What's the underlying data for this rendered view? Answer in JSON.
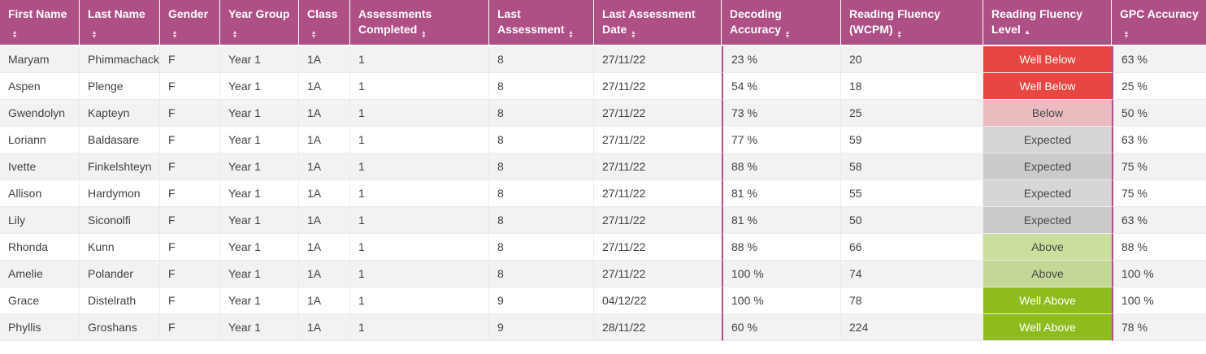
{
  "colors": {
    "header_bg": "#ae4f86",
    "accent_border": "#b04d8a",
    "row_stripe": "#f2f2f2",
    "body_text": "#414141",
    "header_text": "#ffffff"
  },
  "levels": {
    "Well Below": {
      "bg": "rgba(229,56,52,0.93)",
      "text": "#ffffff"
    },
    "Below": {
      "bg": "rgba(220,80,90,0.33)",
      "text": "#474747"
    },
    "Expected": {
      "bg": "rgba(0,0,0,0.16)",
      "text": "#474747"
    },
    "Above": {
      "bg": "rgba(139,184,35,0.45)",
      "text": "#474747"
    },
    "Well Above": {
      "bg": "rgba(142,188,31,1)",
      "text": "#ffffff"
    }
  },
  "table": {
    "columns": [
      {
        "key": "first_name",
        "label": "First Name",
        "sort": "both"
      },
      {
        "key": "last_name",
        "label": "Last Name",
        "sort": "both"
      },
      {
        "key": "gender",
        "label": "Gender",
        "sort": "both"
      },
      {
        "key": "year_group",
        "label": "Year Group",
        "sort": "both"
      },
      {
        "key": "class",
        "label": "Class",
        "sort": "both"
      },
      {
        "key": "assessments_completed",
        "label": "Assessments Completed",
        "sort": "both"
      },
      {
        "key": "last_assessment",
        "label": "Last Assessment",
        "sort": "both"
      },
      {
        "key": "last_assessment_date",
        "label": "Last Assessment Date",
        "sort": "both"
      },
      {
        "key": "decoding_accuracy",
        "label": "Decoding Accuracy",
        "sort": "both"
      },
      {
        "key": "reading_fluency_wcpm",
        "label": "Reading Fluency (WCPM)",
        "sort": "both"
      },
      {
        "key": "reading_fluency_level",
        "label": "Reading Fluency Level",
        "sort": "asc"
      },
      {
        "key": "gpc_accuracy",
        "label": "GPC Accuracy",
        "sort": "both"
      }
    ],
    "rows": [
      {
        "first_name": "Maryam",
        "last_name": "Phimmachack",
        "gender": "F",
        "year_group": "Year 1",
        "class": "1A",
        "assessments_completed": "1",
        "last_assessment": "8",
        "last_assessment_date": "27/11/22",
        "decoding_accuracy": "23 %",
        "reading_fluency_wcpm": "20",
        "reading_fluency_level": "Well Below",
        "gpc_accuracy": "63 %"
      },
      {
        "first_name": "Aspen",
        "last_name": "Plenge",
        "gender": "F",
        "year_group": "Year 1",
        "class": "1A",
        "assessments_completed": "1",
        "last_assessment": "8",
        "last_assessment_date": "27/11/22",
        "decoding_accuracy": "54 %",
        "reading_fluency_wcpm": "18",
        "reading_fluency_level": "Well Below",
        "gpc_accuracy": "25 %"
      },
      {
        "first_name": "Gwendolyn",
        "last_name": "Kapteyn",
        "gender": "F",
        "year_group": "Year 1",
        "class": "1A",
        "assessments_completed": "1",
        "last_assessment": "8",
        "last_assessment_date": "27/11/22",
        "decoding_accuracy": "73 %",
        "reading_fluency_wcpm": "25",
        "reading_fluency_level": "Below",
        "gpc_accuracy": "50 %"
      },
      {
        "first_name": "Loriann",
        "last_name": "Baldasare",
        "gender": "F",
        "year_group": "Year 1",
        "class": "1A",
        "assessments_completed": "1",
        "last_assessment": "8",
        "last_assessment_date": "27/11/22",
        "decoding_accuracy": "77 %",
        "reading_fluency_wcpm": "59",
        "reading_fluency_level": "Expected",
        "gpc_accuracy": "63 %"
      },
      {
        "first_name": "Ivette",
        "last_name": "Finkelshteyn",
        "gender": "F",
        "year_group": "Year 1",
        "class": "1A",
        "assessments_completed": "1",
        "last_assessment": "8",
        "last_assessment_date": "27/11/22",
        "decoding_accuracy": "88 %",
        "reading_fluency_wcpm": "58",
        "reading_fluency_level": "Expected",
        "gpc_accuracy": "75 %"
      },
      {
        "first_name": "Allison",
        "last_name": "Hardymon",
        "gender": "F",
        "year_group": "Year 1",
        "class": "1A",
        "assessments_completed": "1",
        "last_assessment": "8",
        "last_assessment_date": "27/11/22",
        "decoding_accuracy": "81 %",
        "reading_fluency_wcpm": "55",
        "reading_fluency_level": "Expected",
        "gpc_accuracy": "75 %"
      },
      {
        "first_name": "Lily",
        "last_name": "Siconolfi",
        "gender": "F",
        "year_group": "Year 1",
        "class": "1A",
        "assessments_completed": "1",
        "last_assessment": "8",
        "last_assessment_date": "27/11/22",
        "decoding_accuracy": "81 %",
        "reading_fluency_wcpm": "50",
        "reading_fluency_level": "Expected",
        "gpc_accuracy": "63 %"
      },
      {
        "first_name": "Rhonda",
        "last_name": "Kunn",
        "gender": "F",
        "year_group": "Year 1",
        "class": "1A",
        "assessments_completed": "1",
        "last_assessment": "8",
        "last_assessment_date": "27/11/22",
        "decoding_accuracy": "88 %",
        "reading_fluency_wcpm": "66",
        "reading_fluency_level": "Above",
        "gpc_accuracy": "88 %"
      },
      {
        "first_name": "Amelie",
        "last_name": "Polander",
        "gender": "F",
        "year_group": "Year 1",
        "class": "1A",
        "assessments_completed": "1",
        "last_assessment": "8",
        "last_assessment_date": "27/11/22",
        "decoding_accuracy": "100 %",
        "reading_fluency_wcpm": "74",
        "reading_fluency_level": "Above",
        "gpc_accuracy": "100 %"
      },
      {
        "first_name": "Grace",
        "last_name": "Distelrath",
        "gender": "F",
        "year_group": "Year 1",
        "class": "1A",
        "assessments_completed": "1",
        "last_assessment": "9",
        "last_assessment_date": "04/12/22",
        "decoding_accuracy": "100 %",
        "reading_fluency_wcpm": "78",
        "reading_fluency_level": "Well Above",
        "gpc_accuracy": "100 %"
      },
      {
        "first_name": "Phyllis",
        "last_name": "Groshans",
        "gender": "F",
        "year_group": "Year 1",
        "class": "1A",
        "assessments_completed": "1",
        "last_assessment": "9",
        "last_assessment_date": "28/11/22",
        "decoding_accuracy": "60 %",
        "reading_fluency_wcpm": "224",
        "reading_fluency_level": "Well Above",
        "gpc_accuracy": "78 %"
      }
    ]
  }
}
